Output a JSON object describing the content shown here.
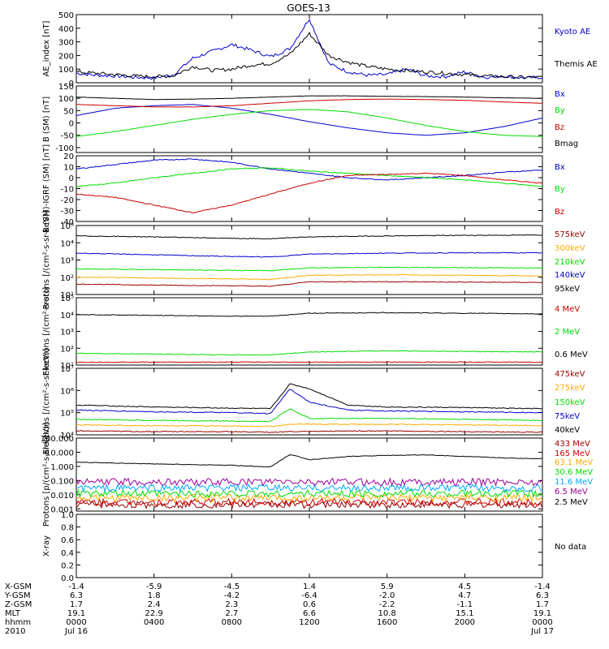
{
  "title": "GOES-13",
  "colors": {
    "black": "#000000",
    "blue": "#0000cc",
    "green": "#00dd00",
    "red": "#cc0000",
    "orange": "#ffaa00",
    "brown": "#990000",
    "yellow": "#dddd00",
    "cyan": "#00aaff",
    "purple": "#990099"
  },
  "chart_data": [
    {
      "type": "line",
      "ylabel": "AE_index [nT]",
      "ylim": [
        0,
        500
      ],
      "yticks": [
        "0",
        "100",
        "200",
        "300",
        "400",
        "500"
      ],
      "series": [
        {
          "name": "Kyoto AE",
          "color": "#0000cc",
          "x": [
            0,
            1,
            2,
            3,
            4,
            5,
            6,
            7,
            8,
            9,
            10,
            11,
            12,
            13,
            14,
            15,
            16,
            17,
            18,
            19,
            20,
            21,
            22,
            23,
            24
          ],
          "values": [
            70,
            55,
            50,
            40,
            35,
            60,
            180,
            230,
            280,
            240,
            190,
            250,
            470,
            140,
            80,
            55,
            60,
            100,
            50,
            45,
            80,
            40,
            50,
            35,
            40
          ]
        },
        {
          "name": "Themis AE",
          "color": "#000000",
          "x": [
            0,
            1,
            2,
            3,
            4,
            5,
            6,
            7,
            8,
            9,
            10,
            11,
            12,
            13,
            14,
            15,
            16,
            17,
            18,
            19,
            20,
            21,
            22,
            23,
            24
          ],
          "values": [
            80,
            70,
            60,
            50,
            45,
            50,
            120,
            90,
            100,
            130,
            140,
            210,
            360,
            200,
            150,
            120,
            100,
            90,
            80,
            70,
            60,
            50,
            45,
            40,
            40
          ]
        }
      ]
    },
    {
      "type": "line",
      "ylabel": "B (SM) [nT]",
      "ylim": [
        -120,
        150
      ],
      "yticks": [
        "-100",
        "-50",
        "0",
        "50",
        "100",
        "150"
      ],
      "series": [
        {
          "name": "Bx",
          "color": "#0000cc",
          "x": [
            0,
            2,
            4,
            6,
            8,
            10,
            12,
            14,
            16,
            18,
            20,
            22,
            24
          ],
          "values": [
            30,
            60,
            70,
            75,
            60,
            35,
            5,
            -20,
            -40,
            -50,
            -40,
            -15,
            20
          ]
        },
        {
          "name": "By",
          "color": "#00dd00",
          "x": [
            0,
            2,
            4,
            6,
            8,
            10,
            12,
            14,
            16,
            18,
            20,
            22,
            24
          ],
          "values": [
            -55,
            -35,
            -10,
            15,
            35,
            50,
            55,
            45,
            20,
            -10,
            -35,
            -50,
            -55
          ]
        },
        {
          "name": "Bz",
          "color": "#cc0000",
          "x": [
            0,
            2,
            4,
            6,
            8,
            10,
            12,
            14,
            16,
            18,
            20,
            22,
            24
          ],
          "values": [
            75,
            70,
            65,
            65,
            70,
            80,
            90,
            95,
            97,
            95,
            92,
            85,
            80
          ]
        },
        {
          "name": "Bmag",
          "color": "#000000",
          "x": [
            0,
            2,
            4,
            6,
            8,
            10,
            12,
            14,
            16,
            18,
            20,
            22,
            24
          ],
          "values": [
            105,
            100,
            95,
            97,
            100,
            105,
            110,
            110,
            108,
            107,
            105,
            102,
            100
          ]
        }
      ]
    },
    {
      "type": "line",
      "ylabel": "B (SM)-IGRF (SM) [nT]",
      "ylim": [
        -40,
        20
      ],
      "yticks": [
        "-40",
        "-30",
        "-20",
        "-10",
        "0",
        "10",
        "20"
      ],
      "series": [
        {
          "name": "Bx",
          "color": "#0000cc",
          "x": [
            0,
            2,
            4,
            6,
            8,
            10,
            12,
            14,
            16,
            18,
            20,
            22,
            24
          ],
          "values": [
            8,
            12,
            16,
            17,
            14,
            8,
            4,
            0,
            -2,
            0,
            2,
            5,
            7
          ]
        },
        {
          "name": "By",
          "color": "#00dd00",
          "x": [
            0,
            2,
            4,
            6,
            8,
            10,
            12,
            14,
            16,
            18,
            20,
            22,
            24
          ],
          "values": [
            -8,
            -5,
            0,
            4,
            8,
            9,
            6,
            4,
            2,
            0,
            -2,
            -5,
            -8
          ]
        },
        {
          "name": "Bz",
          "color": "#cc0000",
          "x": [
            0,
            2,
            4,
            6,
            8,
            10,
            12,
            14,
            16,
            18,
            20,
            22,
            24
          ],
          "values": [
            -15,
            -18,
            -25,
            -32,
            -25,
            -15,
            -5,
            2,
            3,
            4,
            2,
            -2,
            -5
          ]
        }
      ]
    },
    {
      "type": "line",
      "ylabel": "Protons [/(cm²-s-sr-keV)]",
      "yscale": "log",
      "ylim": [
        10,
        100000
      ],
      "yticks": [
        "10¹",
        "10²",
        "10³",
        "10⁴",
        "10⁵"
      ],
      "series": [
        {
          "name": "575keV",
          "color": "#990000",
          "x": [
            0,
            4,
            8,
            10,
            12,
            16,
            20,
            24
          ],
          "values": [
            40,
            35,
            32,
            30,
            55,
            55,
            52,
            50
          ]
        },
        {
          "name": "300keV",
          "color": "#ffaa00",
          "x": [
            0,
            4,
            8,
            10,
            12,
            16,
            20,
            24
          ],
          "values": [
            100,
            90,
            80,
            75,
            130,
            140,
            130,
            120
          ]
        },
        {
          "name": "210keV",
          "color": "#00dd00",
          "x": [
            0,
            4,
            8,
            10,
            12,
            16,
            20,
            24
          ],
          "values": [
            300,
            280,
            250,
            240,
            350,
            380,
            360,
            340
          ]
        },
        {
          "name": "140keV",
          "color": "#0000cc",
          "x": [
            0,
            4,
            8,
            10,
            12,
            16,
            20,
            24
          ],
          "values": [
            2500,
            2000,
            1600,
            1500,
            2200,
            2500,
            2600,
            2600
          ]
        },
        {
          "name": "95keV",
          "color": "#000000",
          "x": [
            0,
            4,
            8,
            10,
            12,
            16,
            20,
            24
          ],
          "values": [
            25000,
            22000,
            18000,
            17000,
            22000,
            25000,
            27000,
            28000
          ]
        }
      ]
    },
    {
      "type": "line",
      "ylabel": "Electrons [/(cm²-s-sr)]",
      "yscale": "log",
      "ylim": [
        10,
        100000
      ],
      "yticks": [
        "10¹",
        "10²",
        "10³",
        "10⁴",
        "10⁵"
      ],
      "series": [
        {
          "name": "4 MeV",
          "color": "#cc0000",
          "x": [
            0,
            4,
            8,
            12,
            16,
            20,
            24
          ],
          "values": [
            15,
            15,
            15,
            15,
            15,
            15,
            15
          ]
        },
        {
          "name": "2 MeV",
          "color": "#00dd00",
          "x": [
            0,
            4,
            8,
            10,
            12,
            16,
            20,
            24
          ],
          "values": [
            50,
            45,
            40,
            40,
            60,
            70,
            65,
            60
          ]
        },
        {
          "name": "0.6 MeV",
          "color": "#000000",
          "x": [
            0,
            4,
            8,
            10,
            12,
            16,
            20,
            24
          ],
          "values": [
            10000,
            9000,
            8000,
            8000,
            12000,
            13000,
            12000,
            11000
          ]
        }
      ]
    },
    {
      "type": "line",
      "ylabel": "Electrons [/(cm²-s-sr-keV)]",
      "yscale": "log",
      "ylim": [
        10000,
        10000000
      ],
      "yticks": [
        "10⁴",
        "10⁵",
        "10⁶",
        "10⁷"
      ],
      "series": [
        {
          "name": "475keV",
          "color": "#990000",
          "x": [
            0,
            4,
            8,
            10,
            11,
            12,
            14,
            16,
            20,
            24
          ],
          "values": [
            15000,
            14000,
            14000,
            13000,
            14000,
            14000,
            15000,
            15000,
            14000,
            13000
          ]
        },
        {
          "name": "275keV",
          "color": "#ffaa00",
          "x": [
            0,
            4,
            8,
            10,
            11,
            12,
            14,
            16,
            20,
            24
          ],
          "values": [
            28000,
            26000,
            25000,
            24000,
            30000,
            30000,
            30000,
            30000,
            28000,
            26000
          ]
        },
        {
          "name": "150keV",
          "color": "#00dd00",
          "x": [
            0,
            4,
            8,
            10,
            11,
            12,
            14,
            16,
            20,
            24
          ],
          "values": [
            50000,
            45000,
            42000,
            40000,
            150000,
            55000,
            55000,
            55000,
            50000,
            45000
          ]
        },
        {
          "name": "75keV",
          "color": "#0000cc",
          "x": [
            0,
            4,
            8,
            10,
            11,
            12,
            14,
            16,
            20,
            24
          ],
          "values": [
            130000,
            110000,
            100000,
            90000,
            1200000,
            300000,
            130000,
            120000,
            110000,
            100000
          ]
        },
        {
          "name": "40keV",
          "color": "#000000",
          "x": [
            0,
            4,
            8,
            10,
            11,
            12,
            14,
            16,
            20,
            24
          ],
          "values": [
            220000,
            180000,
            160000,
            150000,
            2000000,
            1200000,
            220000,
            180000,
            170000,
            150000
          ]
        }
      ]
    },
    {
      "type": "line",
      "ylabel": "Protons [p/(cm²-s-sr-keV)]",
      "yscale": "log",
      "ylim": [
        0.0007,
        100
      ],
      "yticks": [
        "0.001",
        "0.010",
        "0.100",
        "1.000",
        "10.000",
        "100.000"
      ],
      "series": [
        {
          "name": "433 MeV",
          "color": "#990000",
          "x": [
            0,
            24
          ],
          "values": [
            0.002,
            0.002
          ]
        },
        {
          "name": "165 MeV",
          "color": "#cc0000",
          "x": [
            0,
            24
          ],
          "values": [
            0.003,
            0.003
          ]
        },
        {
          "name": "63.1 MeV",
          "color": "#ffaa00",
          "x": [
            0,
            24
          ],
          "values": [
            0.006,
            0.006
          ]
        },
        {
          "name": "30.6 MeV",
          "color": "#00dd00",
          "x": [
            0,
            24
          ],
          "values": [
            0.012,
            0.012
          ]
        },
        {
          "name": "11.6 MeV",
          "color": "#00aaff",
          "x": [
            0,
            24
          ],
          "values": [
            0.03,
            0.03
          ]
        },
        {
          "name": "6.5 MeV",
          "color": "#990099",
          "x": [
            0,
            24
          ],
          "values": [
            0.08,
            0.08
          ]
        },
        {
          "name": "2.5 MeV",
          "color": "#000000",
          "x": [
            0,
            4,
            8,
            10,
            11,
            12,
            14,
            16,
            18,
            20,
            22,
            24
          ],
          "values": [
            2.0,
            1.5,
            1.2,
            0.9,
            7,
            3,
            5,
            6,
            6.5,
            5,
            4,
            3.5
          ]
        }
      ]
    },
    {
      "type": "line",
      "ylabel": "X-ray",
      "ylim": [
        0,
        1.0
      ],
      "yticks": [
        "0.0",
        "0.2",
        "0.4",
        "0.6",
        "0.8",
        "1.0"
      ],
      "note": "No data",
      "series": []
    }
  ],
  "xaxis": {
    "range": [
      0,
      24
    ],
    "tick_hours": [
      0,
      4,
      8,
      12,
      16,
      20,
      24
    ],
    "rows": [
      {
        "label": "X-GSM",
        "values": [
          "-1.4",
          "-5.9",
          "-4.5",
          "1.4",
          "5.9",
          "4.5",
          "-1.4"
        ]
      },
      {
        "label": "Y-GSM",
        "values": [
          "6.3",
          "1.8",
          "-4.2",
          "-6.4",
          "-2.0",
          "4.7",
          "6.3"
        ]
      },
      {
        "label": "Z-GSM",
        "values": [
          "1.7",
          "2.4",
          "2.3",
          "0.6",
          "-2.2",
          "-1.1",
          "1.7"
        ]
      },
      {
        "label": "MLT",
        "values": [
          "19.1",
          "22.9",
          "2.7",
          "6.6",
          "10.8",
          "15.1",
          "19.1"
        ]
      },
      {
        "label": "hhmm",
        "values": [
          "0000",
          "0400",
          "0800",
          "1200",
          "1600",
          "2000",
          "0000"
        ]
      },
      {
        "label": "2010",
        "values": [
          "Jul 16",
          "",
          "",
          "",
          "",
          "",
          "Jul 17"
        ]
      }
    ]
  }
}
